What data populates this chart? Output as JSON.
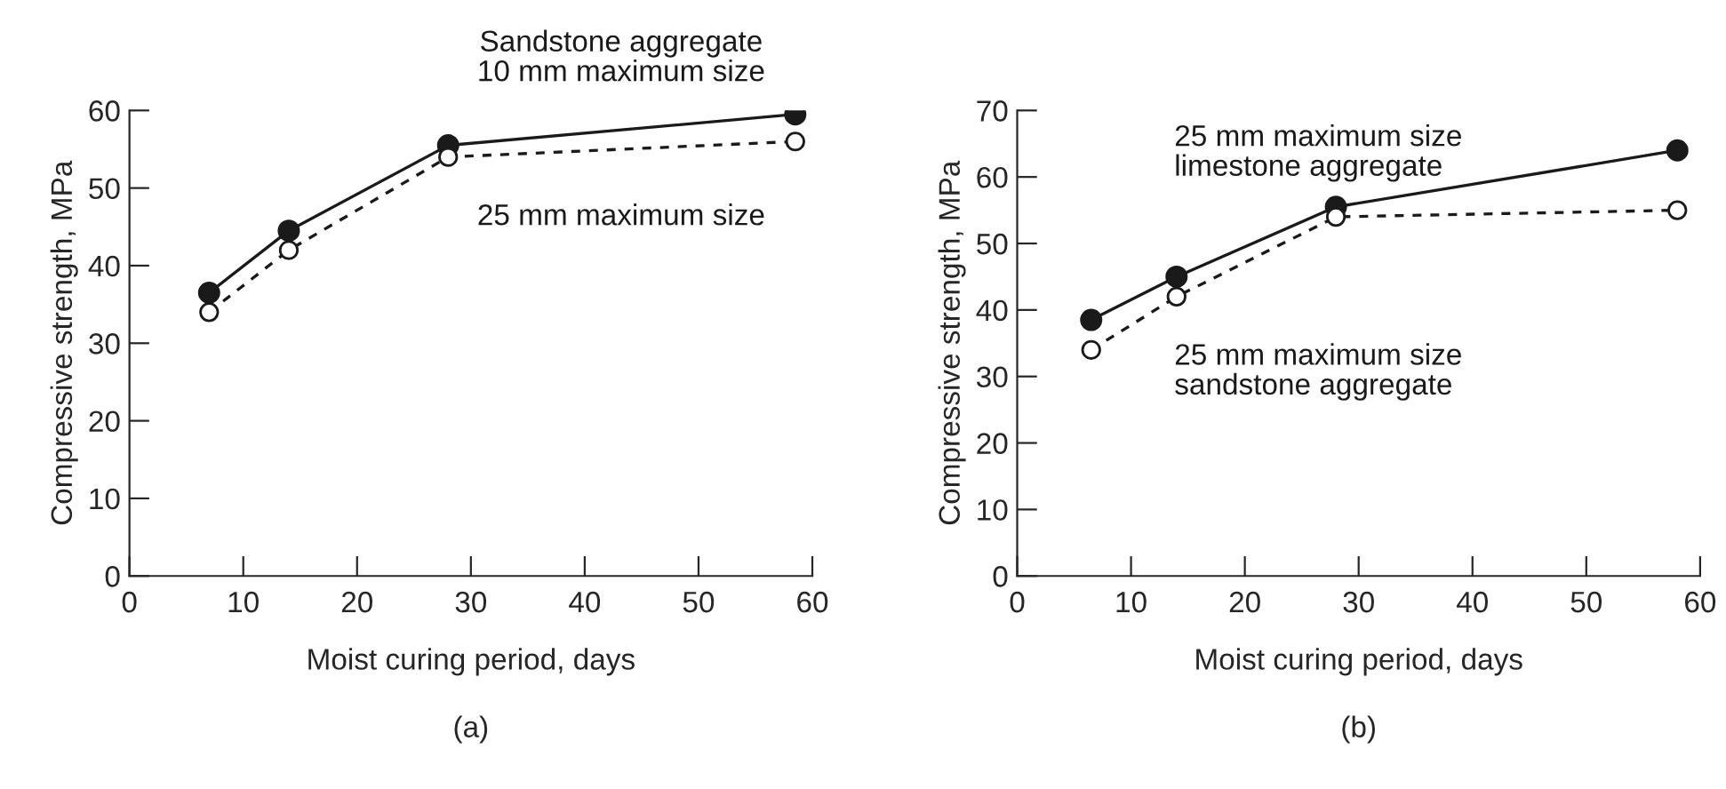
{
  "chart_data": [
    {
      "type": "line",
      "title": "(a)",
      "xlabel": "Moist curing period, days",
      "ylabel": "Compressive strength, MPa",
      "xlim": [
        0,
        60
      ],
      "xticks": [
        0,
        10,
        20,
        30,
        40,
        50,
        60
      ],
      "ylim": [
        0,
        60
      ],
      "yticks": [
        0,
        10,
        20,
        30,
        40,
        50,
        60
      ],
      "grid": false,
      "legend": false,
      "marker": "circle",
      "series": [
        {
          "name": "Sandstone aggregate\n10 mm maximum size",
          "color": "#1a1a1a",
          "line_style": "solid",
          "x": [
            7,
            14,
            28,
            58.5
          ],
          "values": [
            36.5,
            44.5,
            55.5,
            59.5
          ]
        },
        {
          "name": "25 mm maximum size",
          "color": "#1a1a1a",
          "line_style": "dashed",
          "x": [
            7,
            14,
            28,
            58.5
          ],
          "values": [
            34,
            42,
            54,
            56
          ]
        }
      ]
    },
    {
      "type": "line",
      "title": "(b)",
      "xlabel": "Moist curing period, days",
      "ylabel": "Compressive strength, MPa",
      "xlim": [
        0,
        60
      ],
      "xticks": [
        0,
        10,
        20,
        30,
        40,
        50,
        60
      ],
      "ylim": [
        0,
        70
      ],
      "yticks": [
        0,
        10,
        20,
        30,
        40,
        50,
        60,
        70
      ],
      "grid": false,
      "legend": false,
      "marker": "circle",
      "series": [
        {
          "name": "25 mm maximum size\nlimestone aggregate",
          "color": "#1a1a1a",
          "line_style": "solid",
          "x": [
            6.5,
            14,
            28,
            58
          ],
          "values": [
            38.5,
            45,
            55.5,
            64
          ]
        },
        {
          "name": "25 mm maximum size\nsandstone aggregate",
          "color": "#1a1a1a",
          "line_style": "dashed",
          "x": [
            6.5,
            14,
            28,
            58
          ],
          "values": [
            34,
            42,
            54,
            55
          ]
        }
      ]
    }
  ]
}
